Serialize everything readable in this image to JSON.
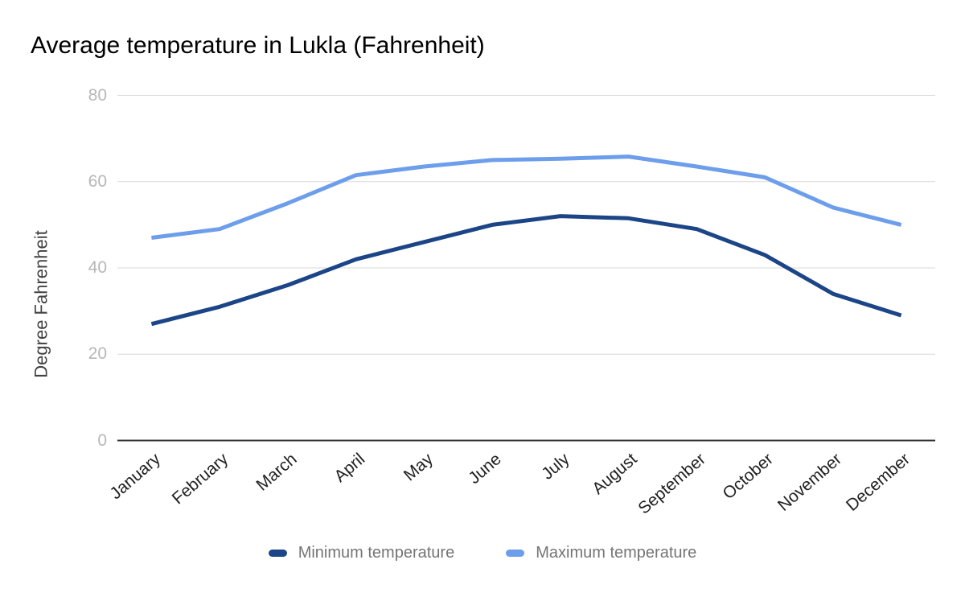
{
  "page": {
    "background": "#ffffff"
  },
  "chart_data": {
    "type": "line",
    "title": "Average temperature in Lukla (Fahrenheit)",
    "ylabel": "Degree Fahrenheit",
    "xlabel": "",
    "categories": [
      "January",
      "February",
      "March",
      "April",
      "May",
      "June",
      "July",
      "August",
      "September",
      "October",
      "November",
      "December"
    ],
    "series": [
      {
        "name": "Minimum temperature",
        "color": "#1c4587",
        "values": [
          27,
          31,
          36,
          42,
          46,
          50,
          52,
          51.5,
          49,
          43,
          34,
          29
        ]
      },
      {
        "name": "Maximum temperature",
        "color": "#6d9eeb",
        "values": [
          47,
          49,
          55,
          61.5,
          63.5,
          65,
          65.3,
          65.8,
          63.5,
          61,
          54,
          50
        ]
      }
    ],
    "ylim": [
      0,
      80
    ],
    "yticks": [
      0,
      20,
      40,
      60,
      80
    ],
    "grid": true,
    "legend_position": "bottom",
    "colors": {
      "grid_line": "#d9d9d9",
      "axis_line": "#333333",
      "y_tick_label": "#b7b7b7",
      "x_tick_label": "#212121",
      "legend_text": "#757575",
      "title_text": "#000000",
      "axis_title_text": "#424242"
    }
  }
}
